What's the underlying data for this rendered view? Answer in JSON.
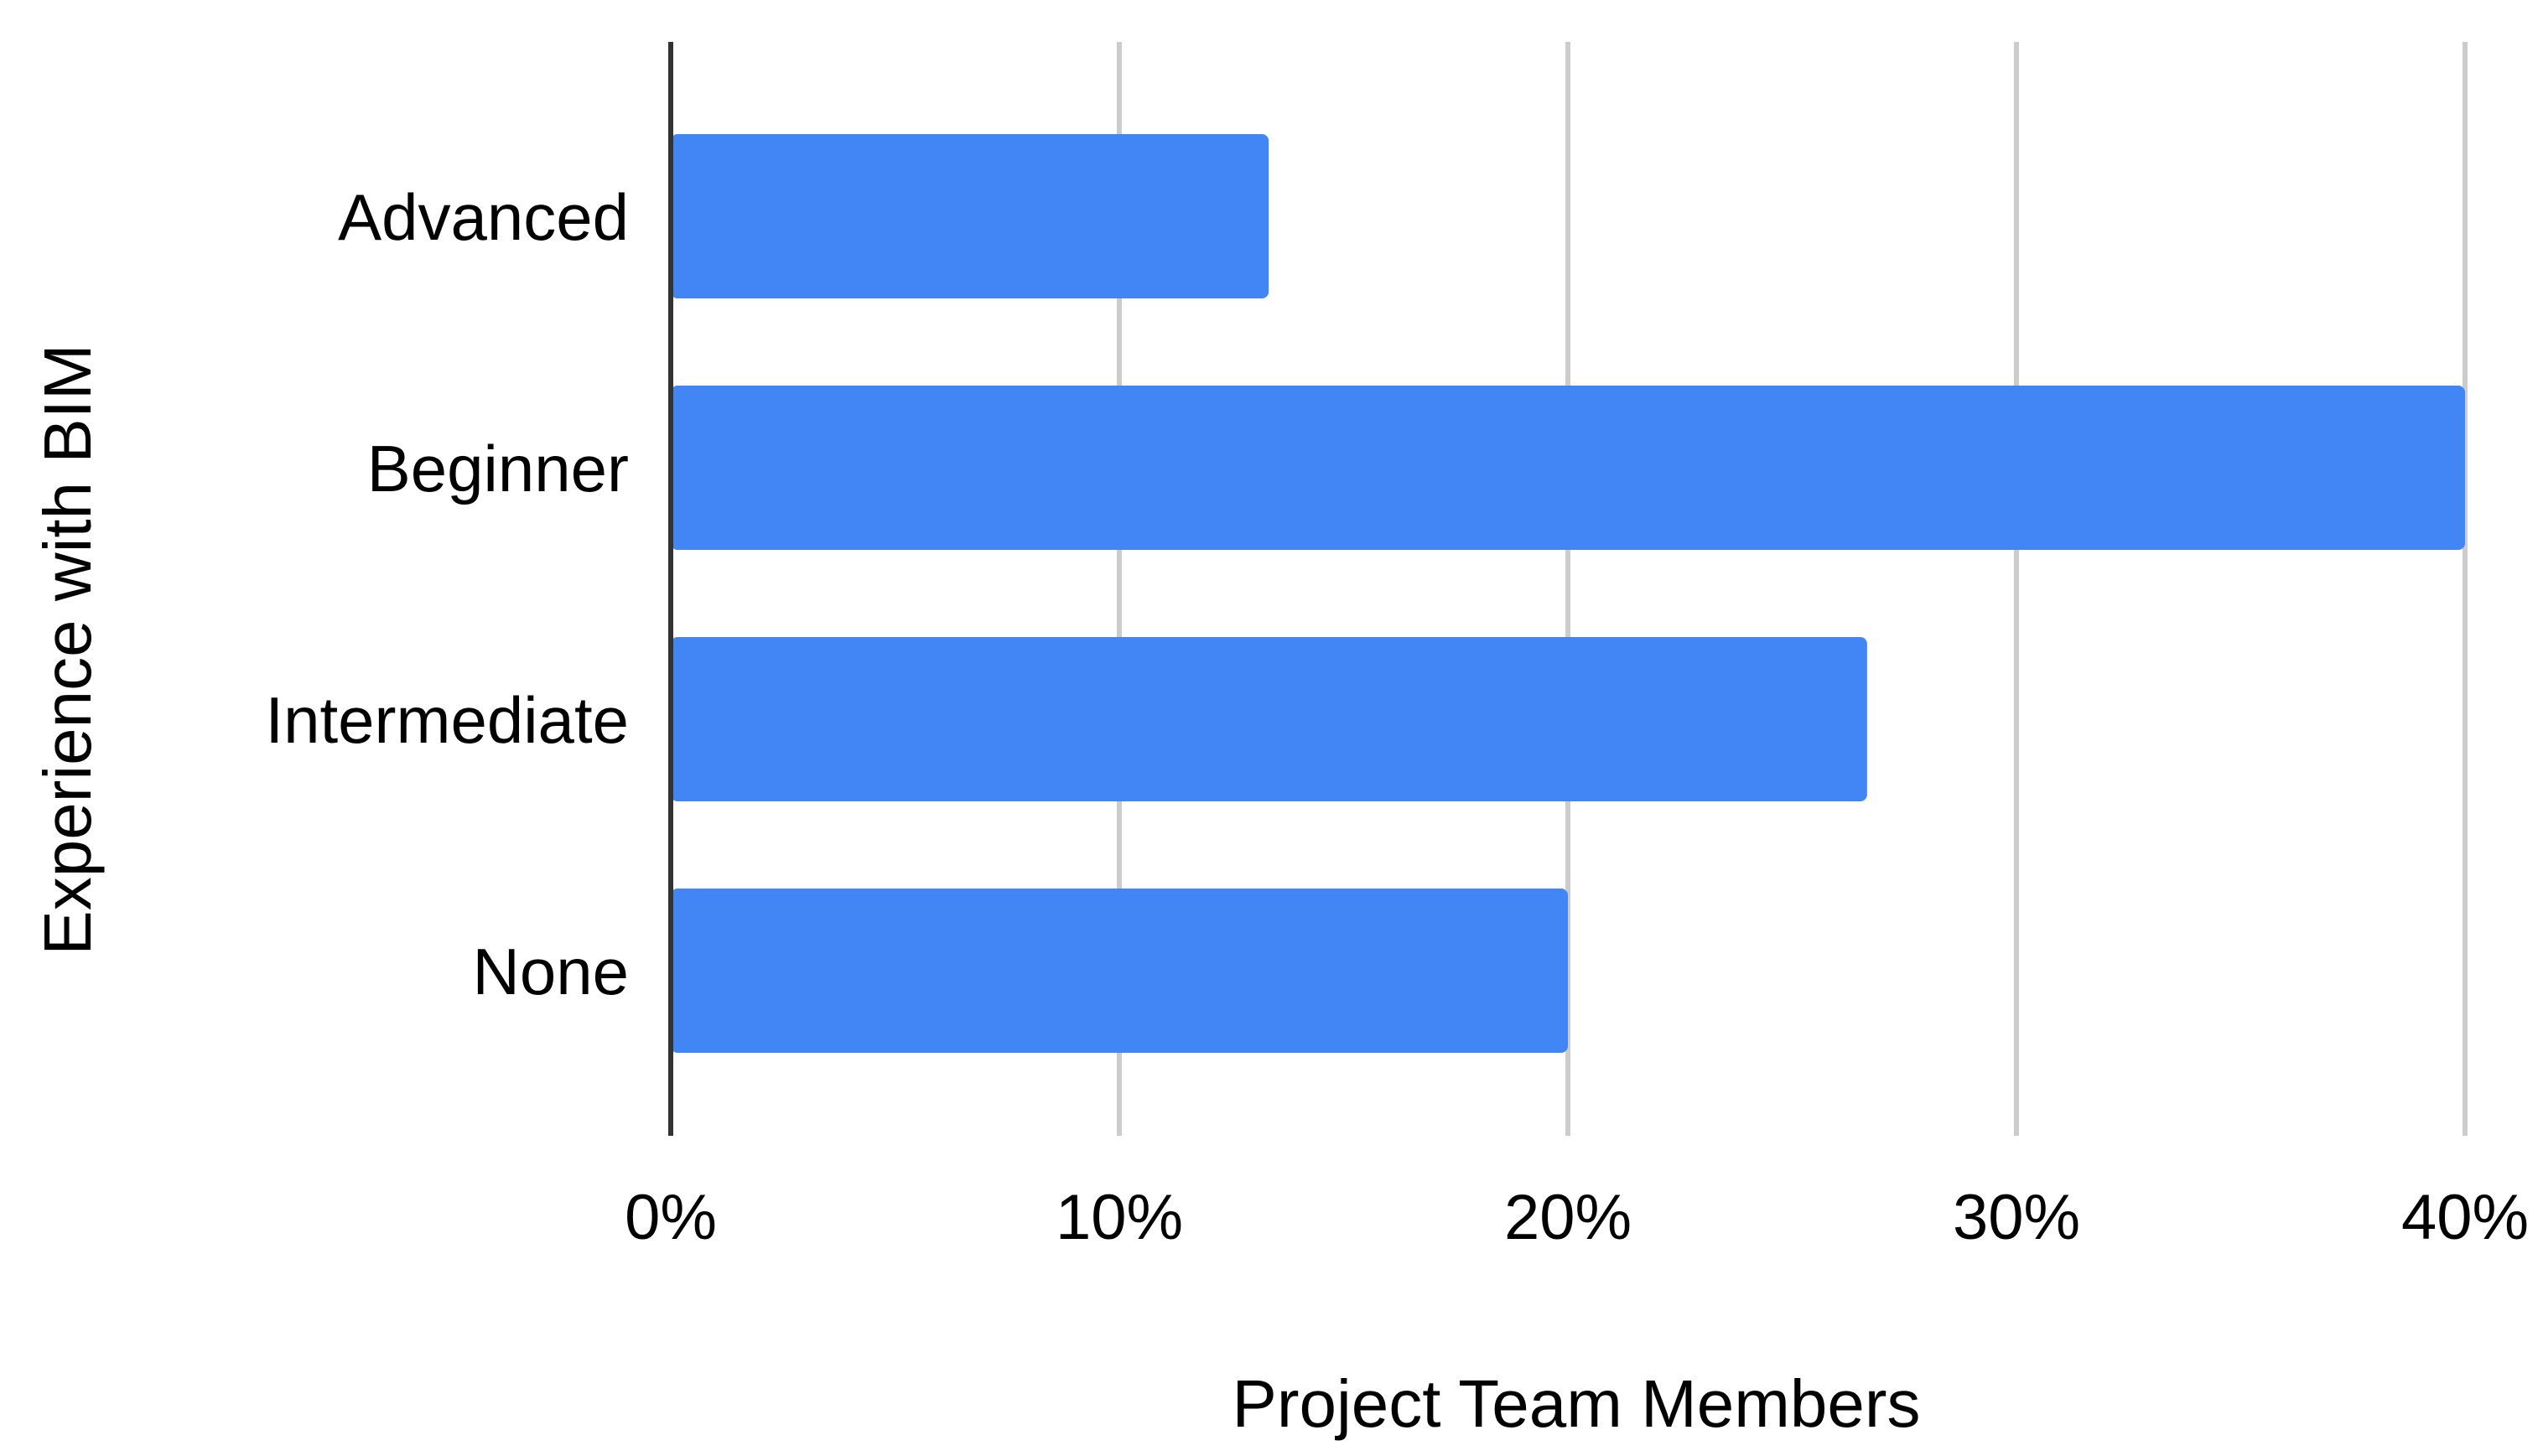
{
  "chart_data": {
    "type": "bar",
    "orientation": "horizontal",
    "categories": [
      "Advanced",
      "Beginner",
      "Intermediate",
      "None"
    ],
    "values": [
      13.33,
      40.0,
      26.67,
      20.0
    ],
    "value_unit": "%",
    "xlabel": "Project Team Members",
    "ylabel": "Experience with BIM",
    "xlim": [
      0,
      40
    ],
    "xticks": [
      0,
      10,
      20,
      30,
      40
    ],
    "xtick_labels": [
      "0%",
      "10%",
      "20%",
      "30%",
      "40%"
    ],
    "grid": "vertical",
    "legend": "none",
    "colors": {
      "bar": "#4285f4",
      "grid": "#cccccc",
      "axis": "#333333",
      "text": "#000000"
    }
  }
}
